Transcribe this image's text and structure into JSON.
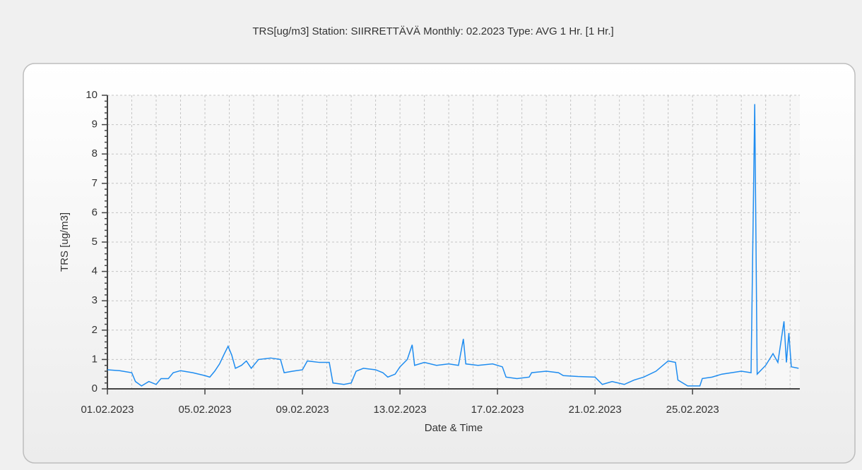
{
  "chart_data": {
    "type": "line",
    "title": "TRS[ug/m3] Station: SIIRRETTÄVÄ  Monthly: 02.2023  Type: AVG 1 Hr. [1 Hr.]",
    "xlabel": "Date & Time",
    "ylabel": "TRS [ug/m3]",
    "x": [
      0,
      0.5,
      1.0,
      1.15,
      1.4,
      1.7,
      2.0,
      2.2,
      2.5,
      2.7,
      3.0,
      3.5,
      4.0,
      4.2,
      4.4,
      4.6,
      4.8,
      4.95,
      5.1,
      5.25,
      5.5,
      5.7,
      5.9,
      6.2,
      6.7,
      7.1,
      7.25,
      7.6,
      8.0,
      8.2,
      8.7,
      9.1,
      9.25,
      9.7,
      10.0,
      10.2,
      10.5,
      11.0,
      11.3,
      11.5,
      11.8,
      12.0,
      12.3,
      12.5,
      12.6,
      13.0,
      13.5,
      14.0,
      14.4,
      14.6,
      14.7,
      15.2,
      15.8,
      16.2,
      16.35,
      16.8,
      17.3,
      17.4,
      18.0,
      18.5,
      18.7,
      19.3,
      20.0,
      20.3,
      20.7,
      21.2,
      21.6,
      22.0,
      22.5,
      23.0,
      23.3,
      23.4,
      23.8,
      24.3,
      24.4,
      24.8,
      25.2,
      25.6,
      26.0,
      26.4,
      26.5,
      26.55,
      26.6,
      26.65,
      27.0,
      27.3,
      27.5,
      27.75,
      27.85,
      27.95,
      28.05,
      28.35
    ],
    "series": [
      {
        "name": "TRS",
        "color": "#1e8cf0",
        "values": [
          0.65,
          0.62,
          0.55,
          0.25,
          0.1,
          0.25,
          0.15,
          0.35,
          0.35,
          0.55,
          0.62,
          0.55,
          0.45,
          0.4,
          0.6,
          0.85,
          1.2,
          1.45,
          1.15,
          0.7,
          0.8,
          0.95,
          0.7,
          1.0,
          1.05,
          1.0,
          0.55,
          0.6,
          0.65,
          0.95,
          0.9,
          0.9,
          0.2,
          0.15,
          0.2,
          0.6,
          0.7,
          0.65,
          0.55,
          0.4,
          0.5,
          0.75,
          1.0,
          1.5,
          0.8,
          0.9,
          0.8,
          0.85,
          0.8,
          1.7,
          0.85,
          0.8,
          0.85,
          0.75,
          0.4,
          0.35,
          0.4,
          0.55,
          0.6,
          0.55,
          0.45,
          0.42,
          0.4,
          0.15,
          0.25,
          0.15,
          0.3,
          0.4,
          0.6,
          0.95,
          0.9,
          0.3,
          0.1,
          0.1,
          0.35,
          0.4,
          0.5,
          0.55,
          0.6,
          0.55,
          6.6,
          9.7,
          5.2,
          0.5,
          0.8,
          1.2,
          0.9,
          2.3,
          0.9,
          1.9,
          0.75,
          0.7
        ]
      }
    ],
    "xlim": [
      0,
      28.4
    ],
    "xticks": [
      {
        "value": 0,
        "label": "01.02.2023"
      },
      {
        "value": 4,
        "label": "05.02.2023"
      },
      {
        "value": 8,
        "label": "09.02.2023"
      },
      {
        "value": 12,
        "label": "13.02.2023"
      },
      {
        "value": 16,
        "label": "17.02.2023"
      },
      {
        "value": 20,
        "label": "21.02.2023"
      },
      {
        "value": 24,
        "label": "25.02.2023"
      }
    ],
    "minor_xticks": [
      1,
      2,
      3,
      5,
      6,
      7,
      9,
      10,
      11,
      13,
      14,
      15,
      17,
      18,
      19,
      21,
      22,
      23,
      25,
      26,
      27,
      28
    ],
    "ylim": [
      0,
      10
    ],
    "yticks": [
      0,
      1,
      2,
      3,
      4,
      5,
      6,
      7,
      8,
      9,
      10
    ],
    "minor_yticks": [
      0.2,
      0.4,
      0.6,
      0.8,
      1.2,
      1.4,
      1.6,
      1.8,
      2.2,
      2.4,
      2.6,
      2.8,
      3.2,
      3.4,
      3.6,
      3.8,
      4.2,
      4.4,
      4.6,
      4.8,
      5.2,
      5.4,
      5.6,
      5.8,
      6.2,
      6.4,
      6.6,
      6.8,
      7.2,
      7.4,
      7.6,
      7.8,
      8.2,
      8.4,
      8.6,
      8.8,
      9.2,
      9.4,
      9.6,
      9.8
    ],
    "grid": true
  }
}
